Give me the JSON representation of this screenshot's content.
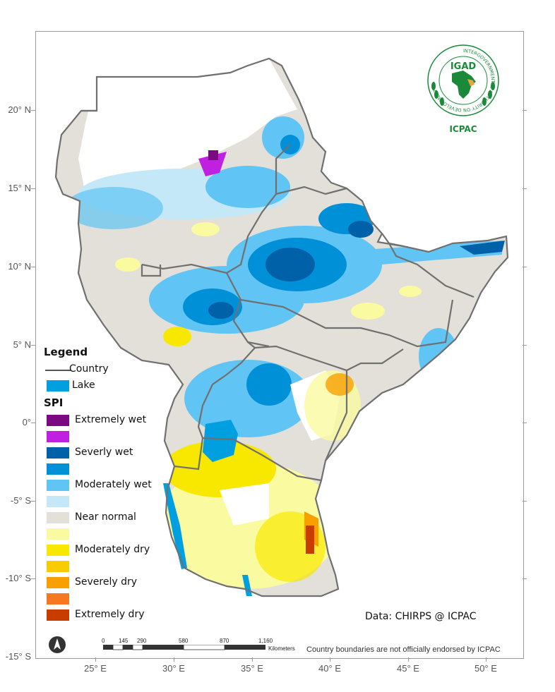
{
  "map": {
    "lat_ticks": [
      "20° N",
      "15° N",
      "10° N",
      "5° N",
      "0°",
      "-5° S",
      "-10° S",
      "-15° S"
    ],
    "lon_ticks": [
      "25° E",
      "30° E",
      "35° E",
      "40° E",
      "45° E",
      "50° E"
    ]
  },
  "legend": {
    "title": "Legend",
    "country_label": "Country",
    "lake_label": "Lake",
    "lake_color": "#00a0e0",
    "spi_title": "SPI",
    "classes": [
      {
        "label": "Extremely wet",
        "color": "#7b0a82"
      },
      {
        "label": "",
        "color": "#c020e0"
      },
      {
        "label": "Severly wet",
        "color": "#0060a8"
      },
      {
        "label": "",
        "color": "#0090d8"
      },
      {
        "label": "Moderately wet",
        "color": "#60c4f4"
      },
      {
        "label": "",
        "color": "#c4e8f8"
      },
      {
        "label": "Near normal",
        "color": "#e2e0d8"
      },
      {
        "label": "",
        "color": "#fafaa0"
      },
      {
        "label": "Moderately dry",
        "color": "#f8e800"
      },
      {
        "label": "",
        "color": "#f8cc00"
      },
      {
        "label": "Severely dry",
        "color": "#f8a000"
      },
      {
        "label": "",
        "color": "#f87820"
      },
      {
        "label": "Extremely dry",
        "color": "#c83c00"
      }
    ]
  },
  "logo": {
    "name": "IGAD",
    "ring_text": "INTERGOVERNMENTAL AUTHORITY ON DEVELOPMENT",
    "subtitle": "ICPAC",
    "brand_color": "#1a8a3a"
  },
  "credits": {
    "data_source": "Data: CHIRPS @ ICPAC",
    "boundary_note": "Country boundaries are not officially endorsed by ICPAC"
  },
  "scalebar": {
    "labels": [
      "0",
      "145",
      "290",
      "580",
      "870",
      "1,160"
    ],
    "unit": "Kilometers"
  }
}
